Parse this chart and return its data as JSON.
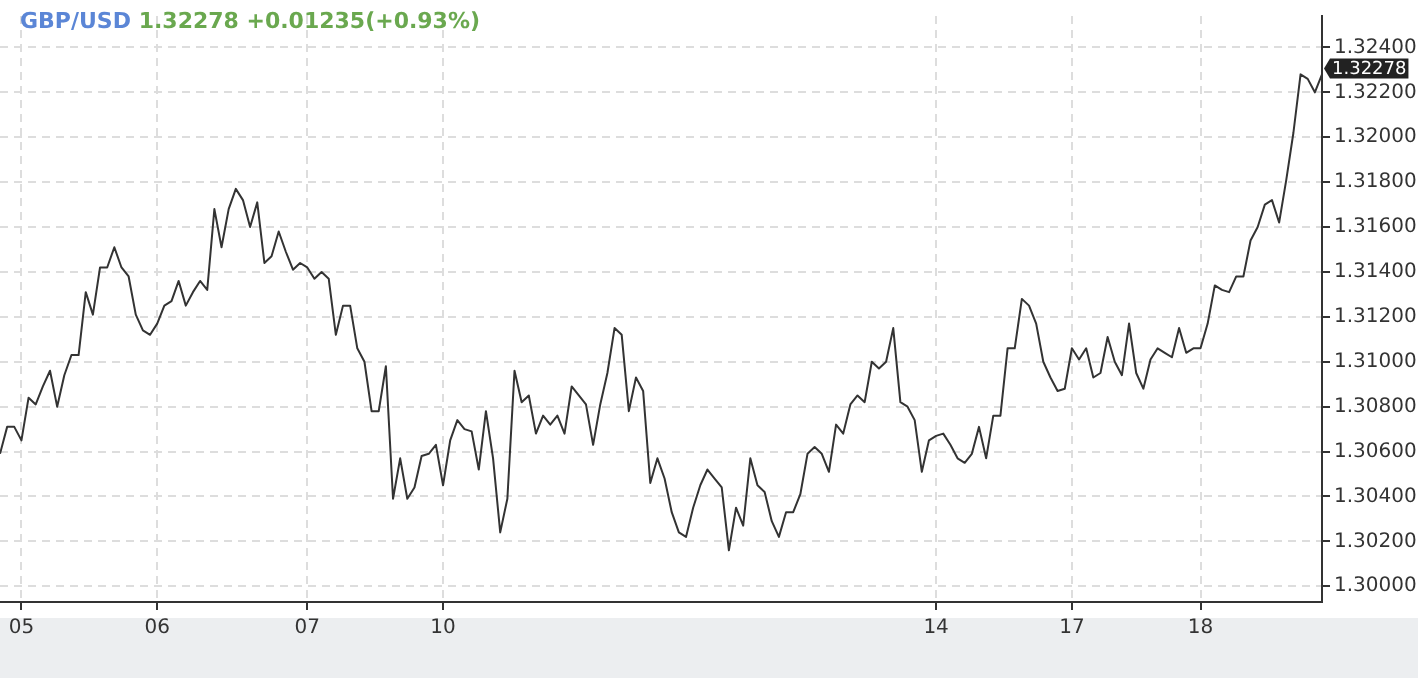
{
  "chart_data": {
    "type": "line",
    "title": "GBP/USD",
    "subtitle": "1.32278 +0.01235(+0.93%)",
    "annotations": [
      "1.32278"
    ],
    "categories": [
      null,
      null,
      null,
      "05",
      null,
      null,
      null,
      null,
      null,
      null,
      null,
      null,
      null,
      null,
      null,
      null,
      null,
      null,
      null,
      null,
      null,
      null,
      "06",
      null,
      null,
      null,
      null,
      null,
      null,
      null,
      null,
      null,
      null,
      null,
      null,
      null,
      null,
      null,
      null,
      null,
      null,
      null,
      null,
      "07",
      null,
      null,
      null,
      null,
      null,
      null,
      null,
      null,
      null,
      null,
      null,
      null,
      null,
      null,
      null,
      null,
      null,
      null,
      "10",
      null,
      null,
      null,
      null,
      null,
      null,
      null,
      null,
      null,
      null,
      null,
      null,
      null,
      null,
      null,
      null,
      null,
      null,
      null,
      null,
      null,
      null,
      null,
      null,
      null,
      null,
      null,
      null,
      null,
      null,
      null,
      null,
      null,
      null,
      null,
      null,
      null,
      null,
      null,
      null,
      null,
      null,
      null,
      null,
      null,
      null,
      null,
      null,
      null,
      null,
      null,
      null,
      null,
      null,
      null,
      null,
      null,
      null,
      null,
      null,
      null,
      null,
      null,
      null,
      null,
      null,
      null,
      null,
      "14",
      null,
      null,
      null,
      null,
      null,
      null,
      null,
      null,
      null,
      null,
      null,
      null,
      null,
      null,
      null,
      null,
      null,
      null,
      "17",
      null,
      null,
      null,
      null,
      null,
      null,
      null,
      null,
      null,
      null,
      null,
      null,
      null,
      null,
      null,
      null,
      null,
      "18",
      null,
      null,
      null,
      null,
      null,
      null,
      null,
      null,
      null,
      null,
      null,
      null,
      null,
      null,
      null,
      null,
      null
    ],
    "ylim": [
      1.2993,
      1.3254
    ],
    "yticks": [
      {
        "value": 1.3,
        "label": "1.30000"
      },
      {
        "value": 1.302,
        "label": "1.30200"
      },
      {
        "value": 1.304,
        "label": "1.30400"
      },
      {
        "value": 1.306,
        "label": "1.30600"
      },
      {
        "value": 1.308,
        "label": "1.30800"
      },
      {
        "value": 1.31,
        "label": "1.31000"
      },
      {
        "value": 1.312,
        "label": "1.31200"
      },
      {
        "value": 1.314,
        "label": "1.31400"
      },
      {
        "value": 1.316,
        "label": "1.31600"
      },
      {
        "value": 1.318,
        "label": "1.31800"
      },
      {
        "value": 1.32,
        "label": "1.32000"
      },
      {
        "value": 1.322,
        "label": "1.32200"
      },
      {
        "value": 1.324,
        "label": "1.32400"
      }
    ],
    "grid": true,
    "legend": false,
    "marker": "none",
    "line_style": "solid",
    "series": [
      {
        "color": "#333333",
        "values": [
          1.3059,
          1.3071,
          1.3071,
          1.3065,
          1.3084,
          1.3081,
          1.3089,
          1.3096,
          1.308,
          1.3094,
          1.3103,
          1.3103,
          1.3131,
          1.3121,
          1.3142,
          1.3142,
          1.3151,
          1.3142,
          1.3138,
          1.3121,
          1.3114,
          1.3112,
          1.3117,
          1.3125,
          1.3127,
          1.3136,
          1.3125,
          1.3131,
          1.3136,
          1.3132,
          1.3168,
          1.3151,
          1.3168,
          1.3177,
          1.3172,
          1.316,
          1.3171,
          1.3144,
          1.3147,
          1.3158,
          1.3149,
          1.3141,
          1.3144,
          1.3142,
          1.3137,
          1.314,
          1.3137,
          1.3112,
          1.3125,
          1.3125,
          1.3106,
          1.31,
          1.3078,
          1.3078,
          1.3098,
          1.3039,
          1.3057,
          1.3039,
          1.3044,
          1.3058,
          1.3059,
          1.3063,
          1.3045,
          1.3065,
          1.3074,
          1.307,
          1.3069,
          1.3052,
          1.3078,
          1.3057,
          1.3024,
          1.3039,
          1.3096,
          1.3082,
          1.3085,
          1.3068,
          1.3076,
          1.3072,
          1.3076,
          1.3068,
          1.3089,
          1.3085,
          1.3081,
          1.3063,
          1.3081,
          1.3095,
          1.3115,
          1.3112,
          1.3078,
          1.3093,
          1.3087,
          1.3046,
          1.3057,
          1.3048,
          1.3033,
          1.3024,
          1.3022,
          1.3035,
          1.3045,
          1.3052,
          1.3048,
          1.3044,
          1.3016,
          1.3035,
          1.3027,
          1.3057,
          1.3045,
          1.3042,
          1.3029,
          1.3022,
          1.3033,
          1.3033,
          1.3041,
          1.3059,
          1.3062,
          1.3059,
          1.3051,
          1.3072,
          1.3068,
          1.3081,
          1.3085,
          1.3082,
          1.31,
          1.3097,
          1.31,
          1.3115,
          1.3082,
          1.308,
          1.3074,
          1.3051,
          1.3065,
          1.3067,
          1.3068,
          1.3063,
          1.3057,
          1.3055,
          1.3059,
          1.3071,
          1.3057,
          1.3076,
          1.3076,
          1.3106,
          1.3106,
          1.3128,
          1.3125,
          1.3117,
          1.31,
          1.3093,
          1.3087,
          1.3088,
          1.3106,
          1.3101,
          1.3106,
          1.3093,
          1.3095,
          1.3111,
          1.31,
          1.3094,
          1.3117,
          1.3095,
          1.3088,
          1.3101,
          1.3106,
          1.3104,
          1.3102,
          1.3115,
          1.3104,
          1.3106,
          1.3106,
          1.3117,
          1.3134,
          1.3132,
          1.3131,
          1.3138,
          1.3138,
          1.3154,
          1.316,
          1.317,
          1.3172,
          1.3162,
          1.3181,
          1.3202,
          1.3228,
          1.3226,
          1.322,
          1.3228
        ]
      }
    ]
  }
}
